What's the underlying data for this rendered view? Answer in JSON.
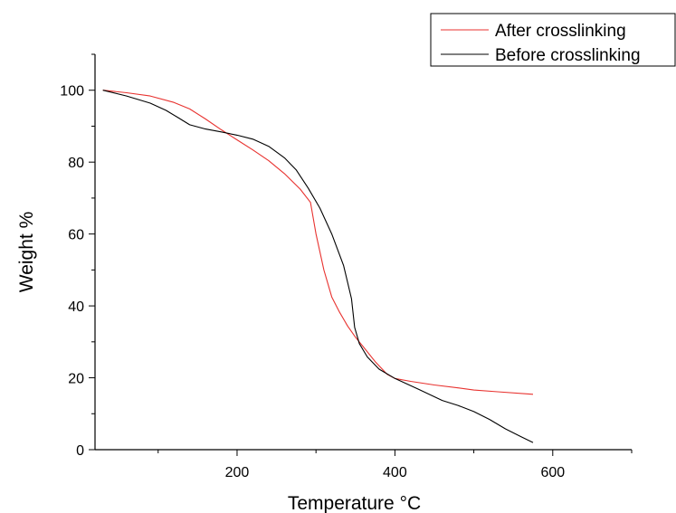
{
  "chart_data": {
    "type": "line",
    "xlabel": "Temperature °C",
    "ylabel": "Weight %",
    "xlim": [
      20,
      700
    ],
    "ylim": [
      0,
      110
    ],
    "x_major_ticks": [
      200,
      400,
      600
    ],
    "x_minor_ticks": [
      100,
      300,
      500,
      700
    ],
    "y_major_ticks": [
      0,
      20,
      40,
      60,
      80,
      100
    ],
    "y_minor_ticks": [
      10,
      30,
      50,
      70,
      90,
      110
    ],
    "grid": false,
    "legend_position": "top-right",
    "series": [
      {
        "name": "After crosslinking",
        "color": "#e8322f",
        "points": [
          [
            30,
            100
          ],
          [
            60,
            99.3
          ],
          [
            90,
            98.4
          ],
          [
            120,
            96.6
          ],
          [
            140,
            94.8
          ],
          [
            160,
            92.0
          ],
          [
            180,
            89.0
          ],
          [
            200,
            86.2
          ],
          [
            220,
            83.4
          ],
          [
            240,
            80.4
          ],
          [
            260,
            76.8
          ],
          [
            280,
            72.5
          ],
          [
            293,
            68.8
          ],
          [
            300,
            60.0
          ],
          [
            310,
            50.0
          ],
          [
            320,
            42.5
          ],
          [
            330,
            38.2
          ],
          [
            340,
            34.4
          ],
          [
            350,
            31.3
          ],
          [
            360,
            28.6
          ],
          [
            375,
            24.5
          ],
          [
            390,
            21.0
          ],
          [
            400,
            19.8
          ],
          [
            420,
            19.0
          ],
          [
            450,
            18.0
          ],
          [
            480,
            17.2
          ],
          [
            500,
            16.6
          ],
          [
            530,
            16.1
          ],
          [
            575,
            15.4
          ]
        ]
      },
      {
        "name": "Before crosslinking",
        "color": "#000000",
        "points": [
          [
            30,
            100
          ],
          [
            60,
            98.4
          ],
          [
            90,
            96.4
          ],
          [
            110,
            94.4
          ],
          [
            125,
            92.4
          ],
          [
            140,
            90.4
          ],
          [
            160,
            89.2
          ],
          [
            180,
            88.4
          ],
          [
            200,
            87.5
          ],
          [
            220,
            86.4
          ],
          [
            240,
            84.4
          ],
          [
            260,
            81.2
          ],
          [
            275,
            77.8
          ],
          [
            290,
            72.8
          ],
          [
            305,
            67.2
          ],
          [
            320,
            60.0
          ],
          [
            335,
            51.2
          ],
          [
            345,
            42.0
          ],
          [
            349,
            34.0
          ],
          [
            355,
            29.5
          ],
          [
            365,
            25.8
          ],
          [
            380,
            22.4
          ],
          [
            400,
            19.8
          ],
          [
            430,
            16.8
          ],
          [
            460,
            13.7
          ],
          [
            480,
            12.3
          ],
          [
            500,
            10.6
          ],
          [
            520,
            8.4
          ],
          [
            540,
            5.8
          ],
          [
            560,
            3.6
          ],
          [
            575,
            2.0
          ]
        ]
      }
    ]
  }
}
